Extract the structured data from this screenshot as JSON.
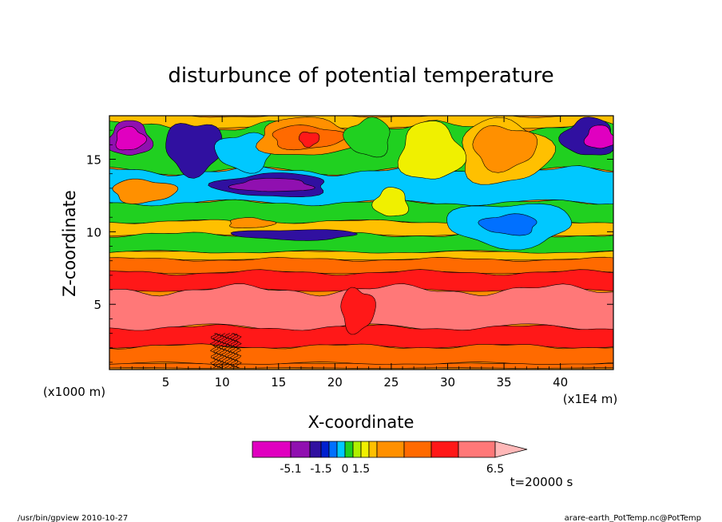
{
  "chart_data": {
    "type": "heatmap",
    "title": "disturbunce of potential temperature",
    "xlabel": "X-coordinate",
    "ylabel": "Z-coordinate",
    "x_unit_label": "(x1E4 m)",
    "y_unit_label": "(x1000 m)",
    "xlim": [
      0,
      44.7
    ],
    "ylim": [
      0.5,
      18
    ],
    "x_ticks": [
      5,
      10,
      15,
      20,
      25,
      30,
      35,
      40
    ],
    "y_ticks": [
      5,
      10,
      15
    ],
    "x_tick_labels": [
      "5",
      "10",
      "15",
      "20",
      "25",
      "30",
      "35",
      "40"
    ],
    "y_tick_labels": [
      "5",
      "10",
      "15"
    ],
    "colorbar": {
      "colors": [
        "#e000c0",
        "#9010b0",
        "#3010a0",
        "#0020d0",
        "#0070ff",
        "#00c8ff",
        "#20d020",
        "#b0f000",
        "#f0f000",
        "#ffc000",
        "#ff9000",
        "#ff6a00",
        "#ff1818",
        "#ff7878",
        "#ffb8b8"
      ],
      "tick_labels": [
        "-5.1",
        "-1.5",
        "0",
        "1.5",
        "6.5"
      ]
    },
    "bands": [
      {
        "z_top": 0.6,
        "color": "#ff9000"
      },
      {
        "z_top": 0.9,
        "color": "#ff6a00"
      },
      {
        "z_top": 2.1,
        "color": "#ff6a00"
      },
      {
        "z_top": 3.4,
        "color": "#ff1818"
      },
      {
        "z_top": 6.0,
        "color": "#ff7878"
      },
      {
        "z_top": 7.2,
        "color": "#ff1818"
      },
      {
        "z_top": 8.1,
        "color": "#ff6a00"
      },
      {
        "z_top": 8.6,
        "color": "#ffc000"
      },
      {
        "z_top": 9.8,
        "color": "#20d020"
      },
      {
        "z_top": 10.7,
        "color": "#ffc000"
      },
      {
        "z_top": 12.0,
        "color": "#20d020"
      },
      {
        "z_top": 14.2,
        "color": "#00c8ff"
      },
      {
        "z_top": 17.2,
        "color": "#20d020"
      },
      {
        "z_top": 18.0,
        "color": "#ffc000"
      }
    ],
    "features": [
      {
        "x": 1.8,
        "z": 16.4,
        "rx": 1.9,
        "rz": 1.2,
        "color": "#9010b0"
      },
      {
        "x": 1.8,
        "z": 16.4,
        "rx": 1.3,
        "rz": 0.8,
        "color": "#e000c0"
      },
      {
        "x": 3.0,
        "z": 12.8,
        "rx": 2.8,
        "rz": 0.8,
        "color": "#ff9000"
      },
      {
        "x": 7.5,
        "z": 15.8,
        "rx": 2.5,
        "rz": 1.8,
        "color": "#3010a0"
      },
      {
        "x": 12.0,
        "z": 15.5,
        "rx": 2.5,
        "rz": 1.3,
        "color": "#00c8ff"
      },
      {
        "x": 14.5,
        "z": 13.2,
        "rx": 5.0,
        "rz": 0.8,
        "color": "#3010a0"
      },
      {
        "x": 14.5,
        "z": 13.2,
        "rx": 3.5,
        "rz": 0.45,
        "color": "#9010b0"
      },
      {
        "x": 17.5,
        "z": 16.5,
        "rx": 4.5,
        "rz": 1.3,
        "color": "#ff9000"
      },
      {
        "x": 17.5,
        "z": 16.5,
        "rx": 3.2,
        "rz": 0.8,
        "color": "#ff6a00"
      },
      {
        "x": 17.7,
        "z": 16.4,
        "rx": 0.9,
        "rz": 0.5,
        "color": "#ff1818"
      },
      {
        "x": 16.5,
        "z": 9.8,
        "rx": 5.5,
        "rz": 0.35,
        "color": "#3010a0"
      },
      {
        "x": 23.0,
        "z": 16.5,
        "rx": 2.0,
        "rz": 1.3,
        "color": "#20d020"
      },
      {
        "x": 25.0,
        "z": 12.0,
        "rx": 1.5,
        "rz": 1.0,
        "color": "#f0f000"
      },
      {
        "x": 28.5,
        "z": 15.5,
        "rx": 2.8,
        "rz": 2.0,
        "color": "#f0f000"
      },
      {
        "x": 35.0,
        "z": 15.5,
        "rx": 4.0,
        "rz": 2.2,
        "color": "#ffc000"
      },
      {
        "x": 35.0,
        "z": 15.8,
        "rx": 2.8,
        "rz": 1.5,
        "color": "#ff9000"
      },
      {
        "x": 35.5,
        "z": 10.5,
        "rx": 5.5,
        "rz": 1.5,
        "color": "#00c8ff"
      },
      {
        "x": 35.5,
        "z": 10.5,
        "rx": 2.5,
        "rz": 0.7,
        "color": "#0070ff"
      },
      {
        "x": 42.5,
        "z": 16.5,
        "rx": 2.3,
        "rz": 1.3,
        "color": "#3010a0"
      },
      {
        "x": 43.5,
        "z": 16.5,
        "rx": 1.3,
        "rz": 0.8,
        "color": "#e000c0"
      },
      {
        "x": 12.5,
        "z": 10.6,
        "rx": 2.0,
        "rz": 0.35,
        "color": "#ff9000"
      },
      {
        "x": 22.0,
        "z": 4.6,
        "rx": 1.5,
        "rz": 1.5,
        "color": "#ff1818"
      }
    ],
    "time_label": "t=20000 s"
  },
  "footer": {
    "left": "/usr/bin/gpview   2010-10-27",
    "right": "arare-earth_PotTemp.nc@PotTemp"
  }
}
